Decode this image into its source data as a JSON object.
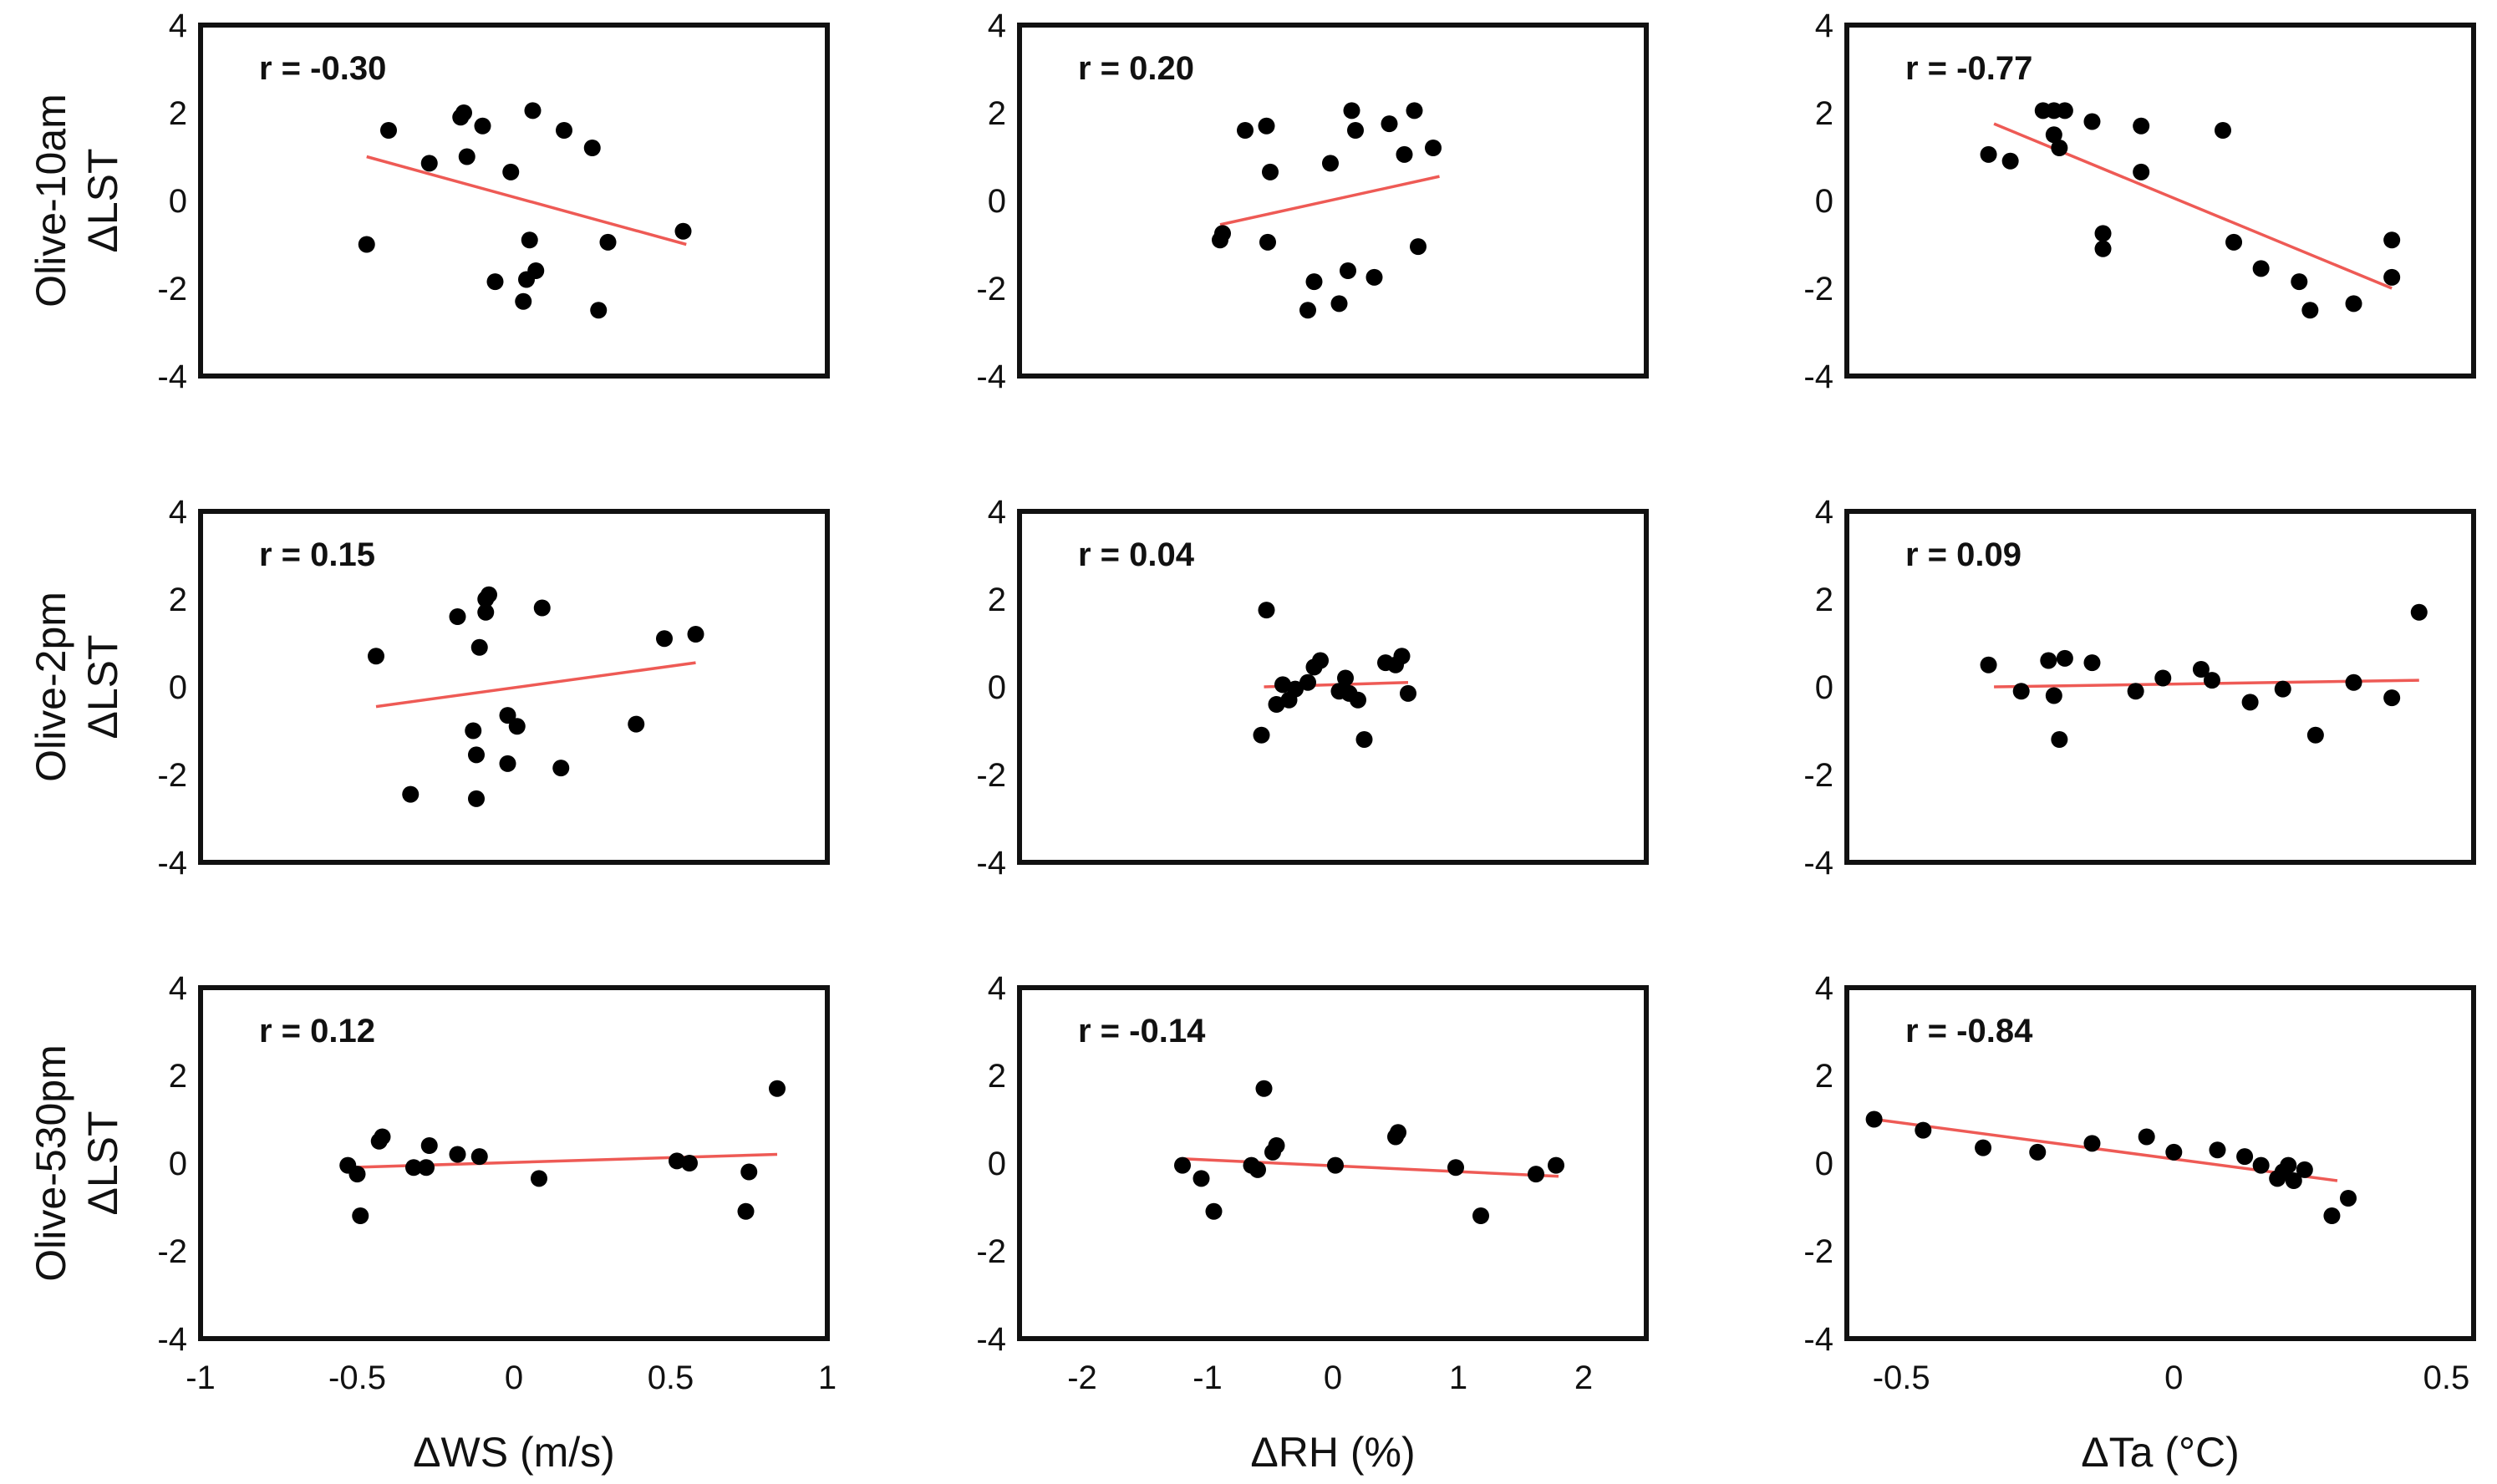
{
  "chart_data": {
    "type": "scatter",
    "rows": [
      "Olive-10am",
      "Olive-2pm",
      "Olive-530pm"
    ],
    "ylabel": "ΔLST",
    "ylim": [
      -4,
      4
    ],
    "yticks": [
      -4,
      -2,
      0,
      2,
      4
    ],
    "columns": [
      {
        "xlabel": "ΔWS (m/s)",
        "xlim": [
          -1,
          1
        ],
        "xticks": [
          -1,
          -0.5,
          0,
          0.5,
          1
        ]
      },
      {
        "xlabel": "ΔRH (%)",
        "xlim": [
          -2.5,
          2.5
        ],
        "xticks": [
          -2,
          -1,
          0,
          1,
          2
        ]
      },
      {
        "xlabel": "ΔTa (°C)",
        "xlim": [
          -0.6,
          0.55
        ],
        "xticks": [
          -0.5,
          0,
          0.5
        ]
      }
    ],
    "panels": [
      {
        "row": 0,
        "col": 0,
        "r_label": "r = -0.30",
        "fit": {
          "x": [
            -0.47,
            0.55
          ],
          "y": [
            1.0,
            -1.0
          ]
        },
        "points": [
          [
            -0.47,
            -1.0
          ],
          [
            -0.4,
            1.6
          ],
          [
            -0.27,
            0.85
          ],
          [
            -0.17,
            1.9
          ],
          [
            -0.16,
            2.0
          ],
          [
            -0.15,
            1.0
          ],
          [
            -0.1,
            1.7
          ],
          [
            -0.06,
            -1.85
          ],
          [
            -0.01,
            0.65
          ],
          [
            0.03,
            -2.3
          ],
          [
            0.04,
            -1.8
          ],
          [
            0.05,
            -0.9
          ],
          [
            0.06,
            2.05
          ],
          [
            0.07,
            -1.6
          ],
          [
            0.16,
            1.6
          ],
          [
            0.25,
            1.2
          ],
          [
            0.27,
            -2.5
          ],
          [
            0.3,
            -0.95
          ],
          [
            0.54,
            -0.7
          ]
        ]
      },
      {
        "row": 0,
        "col": 1,
        "r_label": "r = 0.20",
        "fit": {
          "x": [
            -0.9,
            0.85
          ],
          "y": [
            -0.55,
            0.55
          ]
        },
        "points": [
          [
            -0.9,
            -0.9
          ],
          [
            -0.88,
            -0.75
          ],
          [
            -0.7,
            1.6
          ],
          [
            -0.53,
            1.7
          ],
          [
            -0.52,
            -0.95
          ],
          [
            -0.5,
            0.65
          ],
          [
            -0.2,
            -2.5
          ],
          [
            -0.15,
            -1.85
          ],
          [
            -0.02,
            0.85
          ],
          [
            0.05,
            -2.35
          ],
          [
            0.12,
            -1.6
          ],
          [
            0.15,
            2.05
          ],
          [
            0.18,
            1.6
          ],
          [
            0.33,
            -1.75
          ],
          [
            0.45,
            1.75
          ],
          [
            0.57,
            1.05
          ],
          [
            0.65,
            2.05
          ],
          [
            0.68,
            -1.05
          ],
          [
            0.8,
            1.2
          ]
        ]
      },
      {
        "row": 0,
        "col": 2,
        "r_label": "r = -0.77",
        "fit": {
          "x": [
            -0.33,
            0.4
          ],
          "y": [
            1.75,
            -2.0
          ]
        },
        "points": [
          [
            -0.34,
            1.05
          ],
          [
            -0.3,
            0.9
          ],
          [
            -0.24,
            2.05
          ],
          [
            -0.22,
            2.05
          ],
          [
            -0.22,
            1.5
          ],
          [
            -0.21,
            1.2
          ],
          [
            -0.2,
            2.05
          ],
          [
            -0.15,
            1.8
          ],
          [
            -0.13,
            -0.75
          ],
          [
            -0.13,
            -1.1
          ],
          [
            -0.06,
            0.65
          ],
          [
            -0.06,
            1.7
          ],
          [
            0.09,
            1.6
          ],
          [
            0.11,
            -0.95
          ],
          [
            0.16,
            -1.55
          ],
          [
            0.23,
            -1.85
          ],
          [
            0.25,
            -2.5
          ],
          [
            0.33,
            -2.35
          ],
          [
            0.4,
            -0.9
          ],
          [
            0.4,
            -1.75
          ]
        ]
      },
      {
        "row": 1,
        "col": 0,
        "r_label": "r = 0.15",
        "fit": {
          "x": [
            -0.44,
            0.58
          ],
          "y": [
            -0.45,
            0.55
          ]
        },
        "points": [
          [
            -0.44,
            0.7
          ],
          [
            -0.33,
            -2.45
          ],
          [
            -0.18,
            1.6
          ],
          [
            -0.13,
            -1.0
          ],
          [
            -0.12,
            -1.55
          ],
          [
            -0.12,
            -2.55
          ],
          [
            -0.11,
            0.9
          ],
          [
            -0.09,
            1.7
          ],
          [
            -0.09,
            2.0
          ],
          [
            -0.08,
            2.1
          ],
          [
            -0.02,
            -0.65
          ],
          [
            -0.02,
            -1.75
          ],
          [
            0.01,
            -0.9
          ],
          [
            0.09,
            1.8
          ],
          [
            0.15,
            -1.85
          ],
          [
            0.39,
            -0.85
          ],
          [
            0.48,
            1.1
          ],
          [
            0.58,
            1.2
          ]
        ]
      },
      {
        "row": 1,
        "col": 1,
        "r_label": "r = 0.04",
        "fit": {
          "x": [
            -0.55,
            0.6
          ],
          "y": [
            0.0,
            0.1
          ]
        },
        "points": [
          [
            -0.57,
            -1.1
          ],
          [
            -0.53,
            1.75
          ],
          [
            -0.45,
            -0.4
          ],
          [
            -0.4,
            0.05
          ],
          [
            -0.35,
            -0.3
          ],
          [
            -0.3,
            -0.05
          ],
          [
            -0.2,
            0.1
          ],
          [
            -0.15,
            0.45
          ],
          [
            -0.1,
            0.6
          ],
          [
            0.05,
            -0.1
          ],
          [
            0.1,
            0.2
          ],
          [
            0.13,
            -0.15
          ],
          [
            0.2,
            -0.3
          ],
          [
            0.25,
            -1.2
          ],
          [
            0.42,
            0.55
          ],
          [
            0.5,
            0.5
          ],
          [
            0.55,
            0.7
          ],
          [
            0.6,
            -0.15
          ]
        ]
      },
      {
        "row": 1,
        "col": 2,
        "r_label": "r = 0.09",
        "fit": {
          "x": [
            -0.33,
            0.45
          ],
          "y": [
            0.0,
            0.15
          ]
        },
        "points": [
          [
            -0.34,
            0.5
          ],
          [
            -0.28,
            -0.1
          ],
          [
            -0.23,
            0.6
          ],
          [
            -0.22,
            -0.2
          ],
          [
            -0.21,
            -1.2
          ],
          [
            -0.2,
            0.65
          ],
          [
            -0.15,
            0.55
          ],
          [
            -0.07,
            -0.1
          ],
          [
            -0.02,
            0.2
          ],
          [
            0.05,
            0.4
          ],
          [
            0.07,
            0.15
          ],
          [
            0.14,
            -0.35
          ],
          [
            0.2,
            -0.05
          ],
          [
            0.26,
            -1.1
          ],
          [
            0.33,
            0.1
          ],
          [
            0.4,
            -0.25
          ],
          [
            0.45,
            1.7
          ]
        ]
      },
      {
        "row": 2,
        "col": 0,
        "r_label": "r = 0.12",
        "fit": {
          "x": [
            -0.53,
            0.84
          ],
          "y": [
            -0.1,
            0.2
          ]
        },
        "points": [
          [
            -0.53,
            -0.05
          ],
          [
            -0.5,
            -0.25
          ],
          [
            -0.49,
            -1.2
          ],
          [
            -0.43,
            0.5
          ],
          [
            -0.42,
            0.6
          ],
          [
            -0.32,
            -0.1
          ],
          [
            -0.28,
            -0.1
          ],
          [
            -0.27,
            0.4
          ],
          [
            -0.18,
            0.2
          ],
          [
            -0.11,
            0.15
          ],
          [
            0.08,
            -0.35
          ],
          [
            0.52,
            0.05
          ],
          [
            0.56,
            0.0
          ],
          [
            0.74,
            -1.1
          ],
          [
            0.75,
            -0.2
          ],
          [
            0.84,
            1.7
          ]
        ]
      },
      {
        "row": 2,
        "col": 1,
        "r_label": "r = -0.14",
        "fit": {
          "x": [
            -1.2,
            1.8
          ],
          "y": [
            0.1,
            -0.3
          ]
        },
        "points": [
          [
            -1.2,
            -0.05
          ],
          [
            -1.05,
            -0.35
          ],
          [
            -0.95,
            -1.1
          ],
          [
            -0.65,
            -0.05
          ],
          [
            -0.6,
            -0.15
          ],
          [
            -0.55,
            1.7
          ],
          [
            -0.48,
            0.25
          ],
          [
            -0.45,
            0.4
          ],
          [
            0.02,
            -0.05
          ],
          [
            0.5,
            0.6
          ],
          [
            0.52,
            0.7
          ],
          [
            0.98,
            -0.1
          ],
          [
            1.18,
            -1.2
          ],
          [
            1.62,
            -0.25
          ],
          [
            1.78,
            -0.05
          ]
        ]
      },
      {
        "row": 2,
        "col": 2,
        "r_label": "r = -0.84",
        "fit": {
          "x": [
            -0.55,
            0.3
          ],
          "y": [
            1.0,
            -0.4
          ]
        },
        "points": [
          [
            -0.55,
            1.0
          ],
          [
            -0.46,
            0.75
          ],
          [
            -0.35,
            0.35
          ],
          [
            -0.25,
            0.25
          ],
          [
            -0.15,
            0.45
          ],
          [
            -0.05,
            0.6
          ],
          [
            0.0,
            0.25
          ],
          [
            0.08,
            0.3
          ],
          [
            0.13,
            0.15
          ],
          [
            0.16,
            -0.05
          ],
          [
            0.19,
            -0.35
          ],
          [
            0.2,
            -0.2
          ],
          [
            0.21,
            -0.05
          ],
          [
            0.22,
            -0.4
          ],
          [
            0.24,
            -0.15
          ],
          [
            0.29,
            -1.2
          ],
          [
            0.32,
            -0.8
          ]
        ]
      }
    ]
  }
}
